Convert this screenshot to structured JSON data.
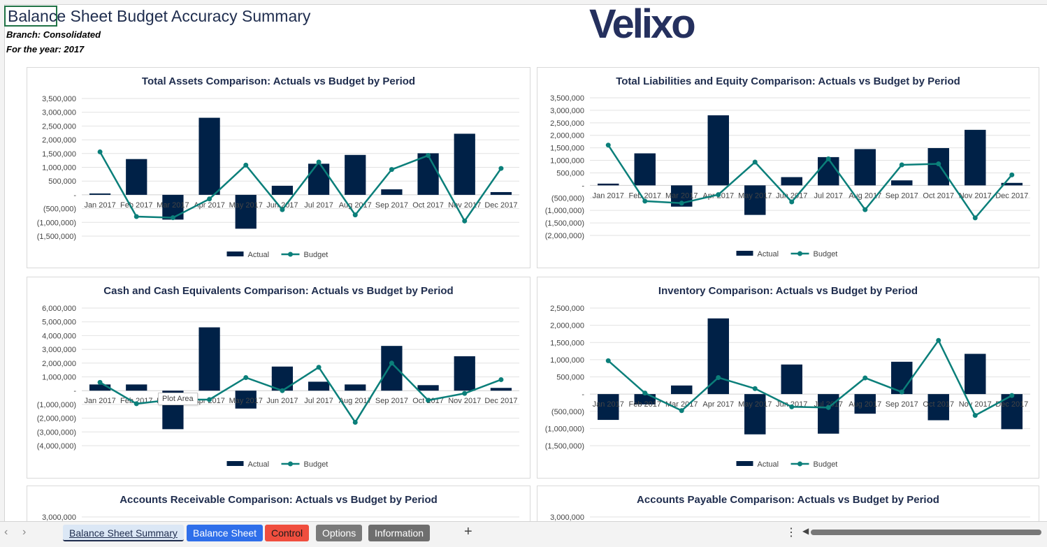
{
  "header": {
    "title": "Balance Sheet Budget Accuracy Summary",
    "branch": "Branch: Consolidated",
    "year": "For the year: 2017",
    "logo": "Velixo"
  },
  "legend": {
    "actual": "Actual",
    "budget": "Budget"
  },
  "colors": {
    "actual": "#002147",
    "budget": "#0b7f7a"
  },
  "tooltip": "Plot Area",
  "chart_data": [
    {
      "type": "bar",
      "title": "Total Assets Comparison: Actuals vs Budget by Period",
      "categories": [
        "Jan 2017",
        "Feb 2017",
        "Mar 2017",
        "Apr 2017",
        "May 2017",
        "Jun 2017",
        "Jul 2017",
        "Aug 2017",
        "Sep 2017",
        "Oct 2017",
        "Nov 2017",
        "Dec 2017"
      ],
      "series": [
        {
          "name": "Actual",
          "type": "bar",
          "values": [
            50000,
            1300000,
            -900000,
            2800000,
            -1230000,
            330000,
            1130000,
            1450000,
            200000,
            1510000,
            2220000,
            100000
          ]
        },
        {
          "name": "Budget",
          "type": "line",
          "values": [
            1560000,
            -790000,
            -830000,
            -150000,
            1080000,
            -540000,
            1190000,
            -730000,
            920000,
            1430000,
            -950000,
            960000
          ]
        }
      ],
      "ylim": [
        -1500000,
        3500000
      ],
      "ticks": [
        "3,500,000",
        "3,000,000",
        "2,500,000",
        "2,000,000",
        "1,500,000",
        "1,000,000",
        "500,000",
        "-",
        "(500,000)",
        "(1,000,000)",
        "(1,500,000)"
      ],
      "legend_position": "bottom"
    },
    {
      "type": "bar",
      "title": "Total Liabilities and Equity Comparison: Actuals vs Budget by Period",
      "categories": [
        "Jan 2017",
        "Feb 2017",
        "Mar 2017",
        "Apr 2017",
        "May 2017",
        "Jun 2017",
        "Jul 2017",
        "Aug 2017",
        "Sep 2017",
        "Oct 2017",
        "Nov 2017",
        "Dec 2017"
      ],
      "series": [
        {
          "name": "Actual",
          "type": "bar",
          "values": [
            70000,
            1280000,
            -850000,
            2800000,
            -1180000,
            330000,
            1130000,
            1450000,
            200000,
            1490000,
            2220000,
            100000
          ]
        },
        {
          "name": "Budget",
          "type": "line",
          "values": [
            1610000,
            -630000,
            -710000,
            -370000,
            930000,
            -660000,
            1060000,
            -970000,
            820000,
            860000,
            -1300000,
            420000
          ]
        }
      ],
      "ylim": [
        -2000000,
        3500000
      ],
      "ticks": [
        "3,500,000",
        "3,000,000",
        "2,500,000",
        "2,000,000",
        "1,500,000",
        "1,000,000",
        "500,000",
        "-",
        "(500,000)",
        "(1,000,000)",
        "(1,500,000)",
        "(2,000,000)"
      ],
      "legend_position": "bottom"
    },
    {
      "type": "bar",
      "title": "Cash and Cash Equivalents Comparison: Actuals vs Budget by Period",
      "categories": [
        "Jan 2017",
        "Feb 2017",
        "Mar 2017",
        "Apr 2017",
        "May 2017",
        "Jun 2017",
        "Jul 2017",
        "Aug 2017",
        "Sep 2017",
        "Oct 2017",
        "Nov 2017",
        "Dec 2017"
      ],
      "series": [
        {
          "name": "Actual",
          "type": "bar",
          "values": [
            450000,
            450000,
            -2800000,
            4600000,
            -1300000,
            1750000,
            650000,
            450000,
            3250000,
            400000,
            2500000,
            200000
          ]
        },
        {
          "name": "Budget",
          "type": "line",
          "values": [
            600000,
            -950000,
            -650000,
            -650000,
            950000,
            0,
            1700000,
            -2300000,
            2000000,
            -700000,
            -200000,
            800000
          ]
        }
      ],
      "ylim": [
        -4000000,
        6000000
      ],
      "ticks": [
        "6,000,000",
        "5,000,000",
        "4,000,000",
        "3,000,000",
        "2,000,000",
        "1,000,000",
        "-",
        "(1,000,000)",
        "(2,000,000)",
        "(3,000,000)",
        "(4,000,000)"
      ],
      "legend_position": "bottom"
    },
    {
      "type": "bar",
      "title": "Inventory Comparison: Actuals vs Budget by Period",
      "categories": [
        "Jan 2017",
        "Feb 2017",
        "Mar 2017",
        "Apr 2017",
        "May 2017",
        "Jun 2017",
        "Jul 2017",
        "Aug 2017",
        "Sep 2017",
        "Oct 2017",
        "Nov 2017",
        "Dec 2017"
      ],
      "series": [
        {
          "name": "Actual",
          "type": "bar",
          "values": [
            -750000,
            -300000,
            250000,
            2200000,
            -1170000,
            860000,
            -1150000,
            -570000,
            940000,
            -760000,
            1170000,
            -1020000
          ]
        },
        {
          "name": "Budget",
          "type": "line",
          "values": [
            970000,
            30000,
            -480000,
            480000,
            160000,
            -370000,
            -390000,
            470000,
            60000,
            1560000,
            -620000,
            -40000
          ]
        }
      ],
      "ylim": [
        -1500000,
        2500000
      ],
      "ticks": [
        "2,500,000",
        "2,000,000",
        "1,500,000",
        "1,000,000",
        "500,000",
        "-",
        "(500,000)",
        "(1,000,000)",
        "(1,500,000)"
      ],
      "legend_position": "bottom"
    },
    {
      "type": "bar",
      "title": "Accounts Receivable Comparison: Actuals vs Budget by Period",
      "categories": [],
      "series": [],
      "ylim": [
        0,
        3000000
      ],
      "ticks": [
        "3,000,000"
      ]
    },
    {
      "type": "bar",
      "title": "Accounts Payable Comparison: Actuals vs Budget by Period",
      "categories": [],
      "series": [],
      "ylim": [
        0,
        3000000
      ],
      "ticks": [
        "3,000,000"
      ]
    }
  ],
  "tabs": [
    {
      "label": "Balance Sheet Summary",
      "bg": "#dbe7f5",
      "fg": "#1f2d4e",
      "active": true
    },
    {
      "label": "Balance Sheet",
      "bg": "#2f6fea",
      "fg": "#ffffff",
      "active": false
    },
    {
      "label": "Control",
      "bg": "#f04e3e",
      "fg": "#1a1a1a",
      "active": false
    },
    {
      "label": "Options",
      "bg": "#7a7a7a",
      "fg": "#ffffff",
      "active": false
    },
    {
      "label": "Information",
      "bg": "#6e6e6e",
      "fg": "#ffffff",
      "active": false
    }
  ]
}
